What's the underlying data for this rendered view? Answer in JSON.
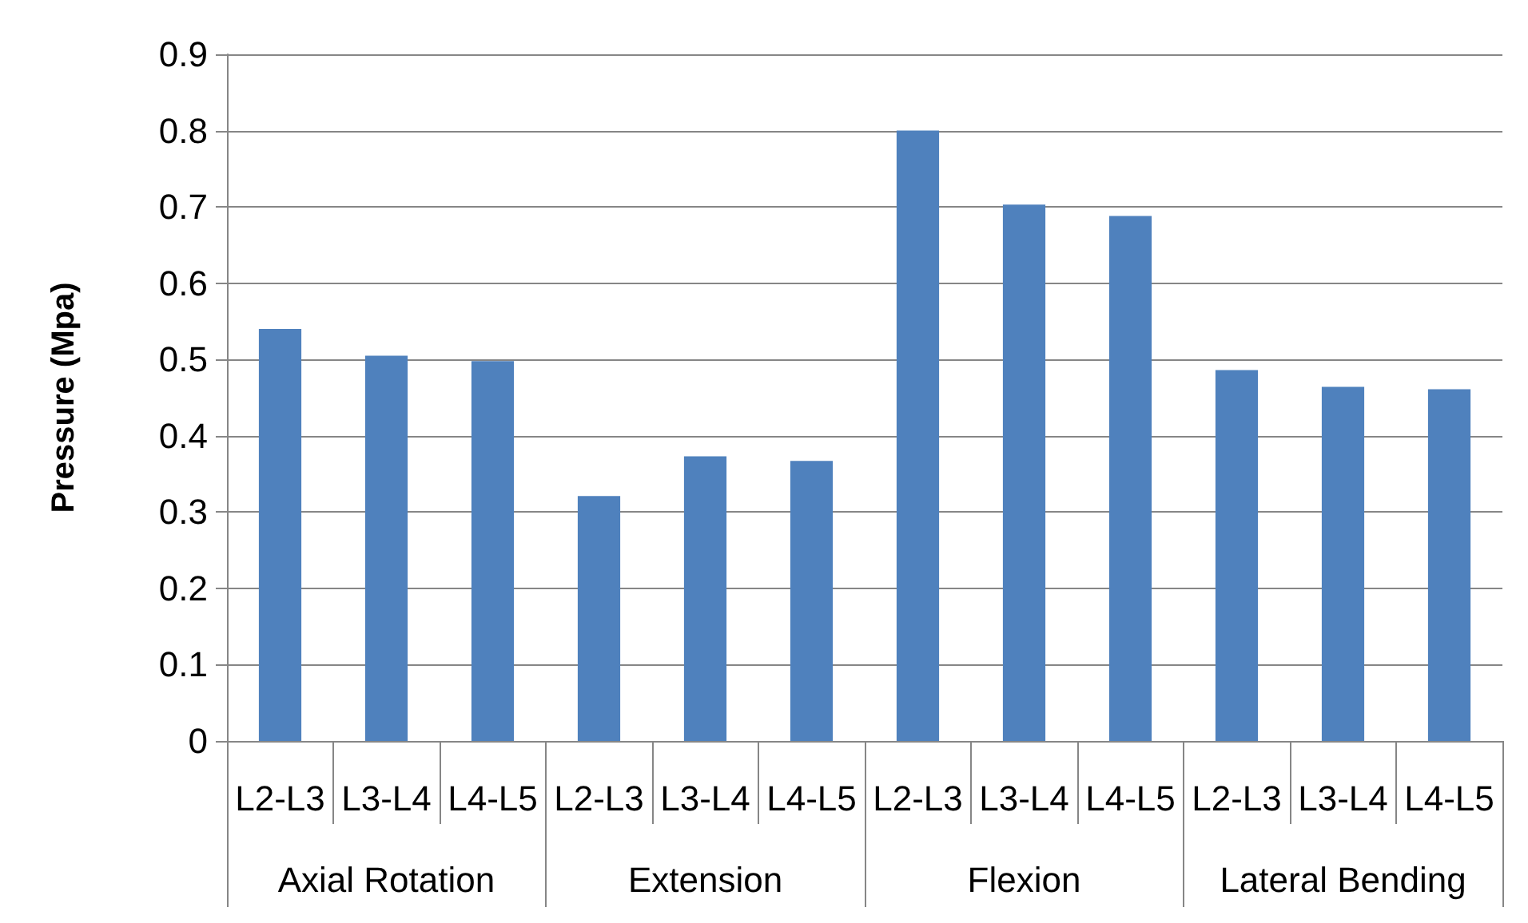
{
  "chart_data": {
    "type": "bar",
    "ylabel": "Pressure (Mpa)",
    "categories": [
      "L2-L3",
      "L3-L4",
      "L4-L5",
      "L2-L3",
      "L3-L4",
      "L4-L5",
      "L2-L3",
      "L3-L4",
      "L4-L5",
      "L2-L3",
      "L3-L4",
      "L4-L5"
    ],
    "values": [
      0.54,
      0.505,
      0.498,
      0.321,
      0.373,
      0.367,
      0.8,
      0.703,
      0.688,
      0.486,
      0.464,
      0.461
    ],
    "color": "#4f81bd",
    "ylim": [
      0,
      0.9
    ],
    "yticks": [
      0,
      0.1,
      0.2,
      0.3,
      0.4,
      0.5,
      0.6,
      0.7,
      0.8,
      0.9
    ],
    "grid": "y",
    "annotations": [
      "Axial Rotation",
      "Extension",
      "Flexion",
      "Lateral Bending"
    ]
  }
}
